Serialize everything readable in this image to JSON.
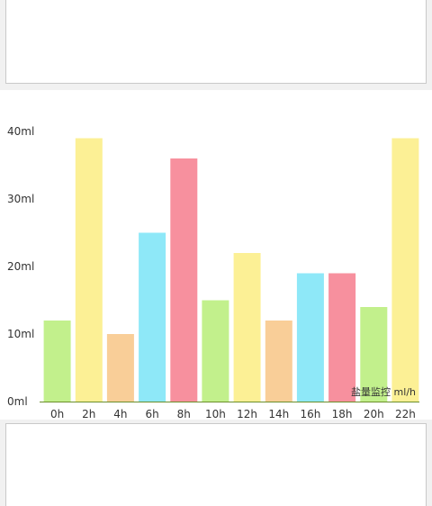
{
  "chart_data": {
    "type": "bar",
    "categories": [
      "0h",
      "2h",
      "4h",
      "6h",
      "8h",
      "10h",
      "12h",
      "14h",
      "16h",
      "18h",
      "20h",
      "22h"
    ],
    "values": [
      12,
      39,
      10,
      25,
      36,
      15,
      22,
      12,
      19,
      19,
      14,
      39
    ],
    "bar_colors": [
      "#c2f08c",
      "#fcf095",
      "#f9ce98",
      "#8ee8f8",
      "#f7909e",
      "#c2f08c",
      "#fcf095",
      "#f9ce98",
      "#8ee8f8",
      "#f7909e",
      "#c2f08c",
      "#fcf095"
    ],
    "ylim": [
      0,
      40
    ],
    "yticks": [
      0,
      10,
      20,
      30,
      40
    ],
    "ytick_labels": [
      "0ml",
      "10ml",
      "20ml",
      "30ml",
      "40ml"
    ],
    "unit_label": "盐量监控 ml/h",
    "grid": false,
    "axis_color": "#6a8e2a",
    "label_color": "#333333"
  }
}
